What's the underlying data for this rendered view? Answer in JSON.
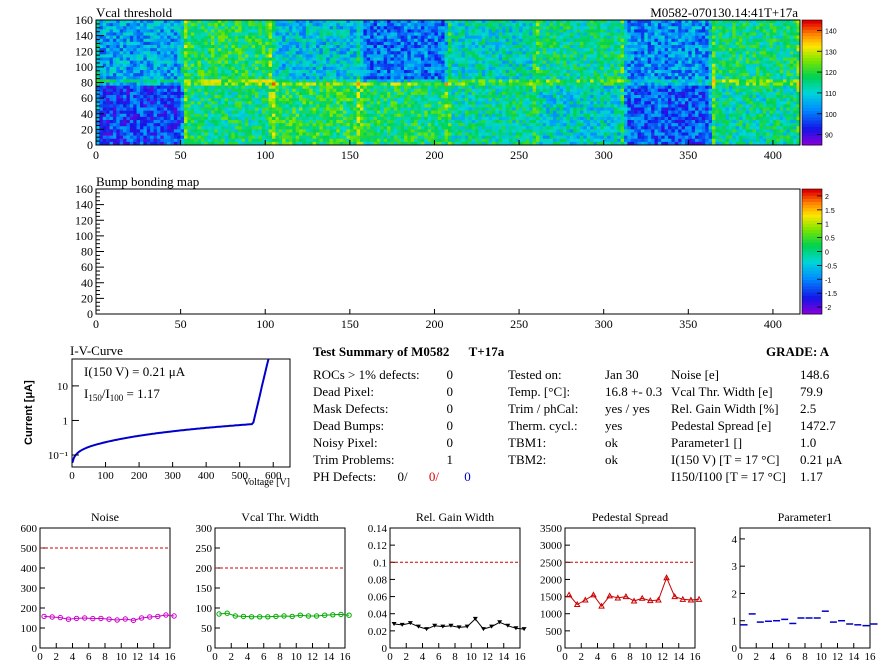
{
  "colors": {
    "threshold": "#bb0000",
    "ref_line": "#cc0000",
    "iv_curve": "#0000cc",
    "noise": "#cc00cc",
    "vcal_width": "#00aa00",
    "gain": "#000000",
    "pedestal": "#cc0000",
    "param1": "#0000cc"
  },
  "maps": {
    "x_ticks": [
      "0",
      "50",
      "100",
      "150",
      "200",
      "250",
      "300",
      "350",
      "400"
    ],
    "y_ticks": [
      "0",
      "20",
      "40",
      "60",
      "80",
      "100",
      "120",
      "140",
      "160"
    ],
    "vcal": {
      "title": "Vcal threshold",
      "id_label": "M0582-070130.14:41T+17a",
      "palette_ticks": [
        "90",
        "100",
        "110",
        "120",
        "130",
        "140"
      ],
      "roc_levels_bottom": [
        100,
        118,
        121,
        119,
        116,
        113,
        102,
        116
      ],
      "roc_levels_top": [
        108,
        120,
        111,
        104,
        114,
        117,
        106,
        118
      ]
    },
    "bump": {
      "title": "Bump bonding map",
      "palette_ticks": [
        "-2",
        "-1.5",
        "-1",
        "-0.5",
        "0",
        "0.5",
        "1",
        "1.5",
        "2"
      ]
    }
  },
  "iv": {
    "title": "I-V-Curve",
    "i150": "I(150 V) = 0.21 μA",
    "ratio": "I150/I100 = 1.17",
    "ylabel": "Current [μA]",
    "xlabel": "Voltage [V]",
    "x_ticks": [
      "0",
      "100",
      "200",
      "300",
      "400",
      "500",
      "600"
    ],
    "y_ticks": [
      "10⁻¹",
      "1",
      "10"
    ]
  },
  "summary": {
    "title": "Test Summary of M0582",
    "temp_label": "T+17a",
    "grade": "GRADE:  A",
    "defects": [
      {
        "label": "ROCs > 1% defects:",
        "value": "0"
      },
      {
        "label": "Dead Pixel:",
        "value": "0"
      },
      {
        "label": "Mask Defects:",
        "value": "0"
      },
      {
        "label": "Dead Bumps:",
        "value": "0"
      },
      {
        "label": "Noisy Pixel:",
        "value": "0"
      },
      {
        "label": "Trim Problems:",
        "value": "1"
      }
    ],
    "ph_defects": {
      "label": "PH Defects:",
      "v1": "0/",
      "v2": "0/",
      "v3": "0"
    },
    "conditions": [
      {
        "label": "Tested on:",
        "value": "Jan 30"
      },
      {
        "label": "Temp. [°C]:",
        "value": "16.8 +- 0.3"
      },
      {
        "label": "Trim / phCal:",
        "value": "yes / yes"
      },
      {
        "label": "Therm. cycl.:",
        "value": "yes"
      },
      {
        "label": "TBM1:",
        "value": "ok"
      },
      {
        "label": "TBM2:",
        "value": "ok"
      }
    ],
    "params": [
      {
        "label": "Noise [e]",
        "value": "148.6"
      },
      {
        "label": "Vcal Thr. Width [e]",
        "value": "79.9"
      },
      {
        "label": "Rel. Gain Width [%]",
        "value": "2.5"
      },
      {
        "label": "Pedestal Spread [e]",
        "value": "1472.7"
      },
      {
        "label": "Parameter1 []",
        "value": "1.0"
      },
      {
        "label": "I(150 V) [T = 17 °C]",
        "value": "0.21 μA"
      },
      {
        "label": "I150/I100  [T = 17 °C]",
        "value": "1.17"
      }
    ]
  },
  "chart_data": [
    {
      "type": "scatter",
      "title": "Noise",
      "xlim": [
        0,
        16
      ],
      "ylim": [
        0,
        600
      ],
      "x_ticks": [
        "0",
        "2",
        "4",
        "6",
        "8",
        "10",
        "12",
        "14",
        "16"
      ],
      "y_ticks": [
        "0",
        "100",
        "200",
        "300",
        "400",
        "500",
        "600"
      ],
      "limit": 500,
      "values": [
        158,
        155,
        152,
        144,
        148,
        150,
        147,
        148,
        144,
        140,
        145,
        138,
        150,
        155,
        158,
        165,
        160
      ]
    },
    {
      "type": "scatter",
      "title": "Vcal Thr. Width",
      "xlim": [
        0,
        16
      ],
      "ylim": [
        0,
        300
      ],
      "x_ticks": [
        "0",
        "2",
        "4",
        "6",
        "8",
        "10",
        "12",
        "14",
        "16"
      ],
      "y_ticks": [
        "0",
        "50",
        "100",
        "150",
        "200",
        "250",
        "300"
      ],
      "limit": 200,
      "values": [
        85,
        87,
        80,
        79,
        78,
        78,
        78,
        79,
        80,
        79,
        82,
        80,
        80,
        82,
        83,
        84,
        82
      ]
    },
    {
      "type": "scatter",
      "title": "Rel. Gain Width",
      "xlim": [
        0,
        16
      ],
      "ylim": [
        0,
        0.14
      ],
      "x_ticks": [
        "0",
        "2",
        "4",
        "6",
        "8",
        "10",
        "12",
        "14",
        "16"
      ],
      "y_ticks": [
        "0",
        "0.02",
        "0.04",
        "0.06",
        "0.08",
        "0.1",
        "0.12",
        "0.14"
      ],
      "limit": 0.1,
      "values": [
        0.028,
        0.027,
        0.029,
        0.025,
        0.022,
        0.026,
        0.025,
        0.026,
        0.024,
        0.025,
        0.034,
        0.022,
        0.025,
        0.03,
        0.026,
        0.023,
        0.022
      ]
    },
    {
      "type": "scatter",
      "title": "Pedestal Spread",
      "xlim": [
        0,
        16
      ],
      "ylim": [
        0,
        3500
      ],
      "x_ticks": [
        "0",
        "2",
        "4",
        "6",
        "8",
        "10",
        "12",
        "14",
        "16"
      ],
      "y_ticks": [
        "0",
        "500",
        "1000",
        "1500",
        "2000",
        "2500",
        "3000",
        "3500"
      ],
      "limit": 2500,
      "values": [
        1550,
        1270,
        1400,
        1550,
        1220,
        1520,
        1460,
        1500,
        1370,
        1450,
        1380,
        1400,
        2050,
        1500,
        1420,
        1400,
        1420
      ]
    },
    {
      "type": "scatter",
      "title": "Parameter1",
      "xlim": [
        0,
        16
      ],
      "ylim": [
        0,
        4.4
      ],
      "x_ticks": [
        "0",
        "2",
        "4",
        "6",
        "8",
        "10",
        "12",
        "14",
        "16"
      ],
      "y_ticks": [
        "0",
        "1",
        "2",
        "3",
        "4"
      ],
      "limit": null,
      "values": [
        0.85,
        1.25,
        0.95,
        0.98,
        1.0,
        1.05,
        0.9,
        1.1,
        1.1,
        1.1,
        1.35,
        0.95,
        1.0,
        0.88,
        0.85,
        0.82,
        0.88
      ]
    }
  ]
}
